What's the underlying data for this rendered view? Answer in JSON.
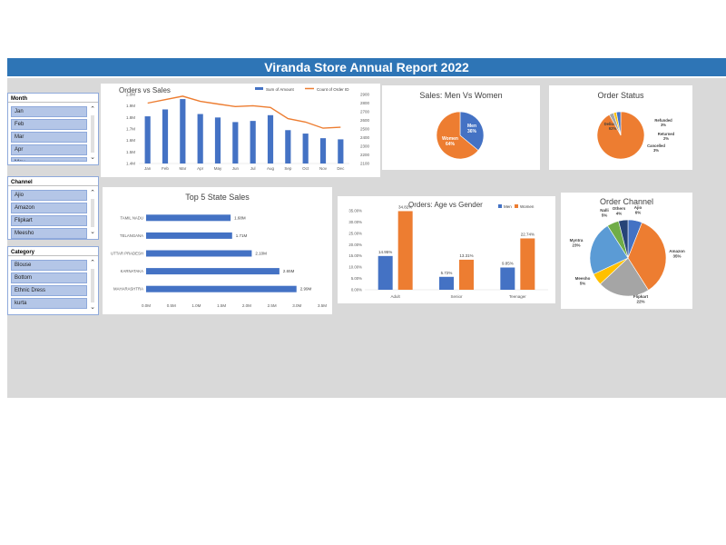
{
  "report": {
    "title": "Viranda Store Annual Report 2022"
  },
  "slicers": [
    {
      "name": "Month",
      "items": [
        "Jan",
        "Feb",
        "Mar",
        "Apr",
        "May"
      ]
    },
    {
      "name": "Channel",
      "items": [
        "Ajio",
        "Amazon",
        "Flipkart",
        "Meesho"
      ]
    },
    {
      "name": "Category",
      "items": [
        "Blouse",
        "Bottom",
        "Ethnic Dress",
        "kurta"
      ]
    }
  ],
  "colors": {
    "blue": "#4472c4",
    "orange": "#ed7d31",
    "gray": "#a5a5a5",
    "yellow": "#ffc000",
    "lightblue": "#5b9bd5",
    "green": "#70ad47",
    "navy": "#264478",
    "banner": "#2e75b6"
  },
  "chart_data": [
    {
      "id": "orders_vs_sales",
      "type": "bar",
      "title": "Orders vs Sales",
      "categories": [
        "Jan",
        "Feb",
        "Mar",
        "Apr",
        "May",
        "Jun",
        "Jul",
        "Aug",
        "Sep",
        "Oct",
        "Nov",
        "Dec"
      ],
      "series": [
        {
          "name": "Sum of Amount",
          "type": "bar",
          "axis": "left",
          "values": [
            1.81,
            1.87,
            1.96,
            1.83,
            1.8,
            1.76,
            1.77,
            1.82,
            1.69,
            1.66,
            1.62,
            1.61
          ]
        },
        {
          "name": "Count of Order ID",
          "type": "line",
          "axis": "right",
          "values": [
            2800,
            2840,
            2880,
            2820,
            2790,
            2760,
            2770,
            2750,
            2620,
            2580,
            2510,
            2520
          ]
        }
      ],
      "yticks_left": [
        "1.4M",
        "1.5M",
        "1.6M",
        "1.7M",
        "1.8M",
        "1.9M",
        "2.0M"
      ],
      "ylim_left": [
        1.4,
        2.0
      ],
      "yticks_right": [
        "2100",
        "2200",
        "2300",
        "2400",
        "2500",
        "2600",
        "2700",
        "2800",
        "2900"
      ],
      "ylim_right": [
        2100,
        2900
      ],
      "legend": "top-right"
    },
    {
      "id": "sales_men_women",
      "type": "pie",
      "title": "Sales: Men Vs Women",
      "labels": [
        "Men",
        "Women"
      ],
      "values": [
        36,
        64
      ],
      "value_labels": [
        "36%",
        "64%"
      ]
    },
    {
      "id": "order_status",
      "type": "pie",
      "title": "Order Status",
      "labels": [
        "Delivered",
        "Refunded",
        "Returned",
        "Cancelled"
      ],
      "values": [
        92,
        3,
        2,
        3
      ],
      "value_labels": [
        "92%",
        "3%",
        "2%",
        "3%"
      ]
    },
    {
      "id": "top5_state_sales",
      "type": "bar",
      "orientation": "horizontal",
      "title": "Top 5 State Sales",
      "categories": [
        "TAMIL NADU",
        "TELANGANA",
        "UTTAR PRADESH",
        "KARNATAKA",
        "MAHARASHTRA"
      ],
      "values": [
        1.68,
        1.71,
        2.1,
        2.65,
        2.99
      ],
      "value_labels": [
        "1.68M",
        "1.71M",
        "2.10M",
        "2.65M",
        "2.99M"
      ],
      "xticks": [
        "0.0M",
        "0.5M",
        "1.0M",
        "1.5M",
        "2.0M",
        "2.5M",
        "3.0M",
        "3.5M"
      ],
      "xlim": [
        0,
        3.5
      ]
    },
    {
      "id": "orders_age_gender",
      "type": "bar",
      "title": "Orders: Age vs Gender",
      "categories": [
        "Adult",
        "Senior",
        "Teenager"
      ],
      "series": [
        {
          "name": "Men",
          "values": [
            14.95,
            5.72,
            9.85
          ],
          "value_labels": [
            "14.95%",
            "5.72%",
            "9.85%"
          ]
        },
        {
          "name": "Women",
          "values": [
            34.82,
            13.31,
            22.74
          ],
          "value_labels": [
            "34.82%",
            "13.31%",
            "22.74%"
          ]
        }
      ],
      "yticks": [
        "0.00%",
        "5.00%",
        "10.00%",
        "15.00%",
        "20.00%",
        "25.00%",
        "30.00%",
        "35.00%"
      ],
      "ylim": [
        0,
        35
      ],
      "legend": "top-right"
    },
    {
      "id": "order_channel",
      "type": "pie",
      "title": "Order Channel",
      "labels": [
        "Ajio",
        "Amazon",
        "Flipkart",
        "Meesho",
        "Myntra",
        "Nalli",
        "Others"
      ],
      "values": [
        6,
        35,
        22,
        5,
        23,
        5,
        4
      ],
      "value_labels": [
        "6%",
        "35%",
        "22%",
        "5%",
        "23%",
        "5%",
        "4%"
      ]
    }
  ]
}
